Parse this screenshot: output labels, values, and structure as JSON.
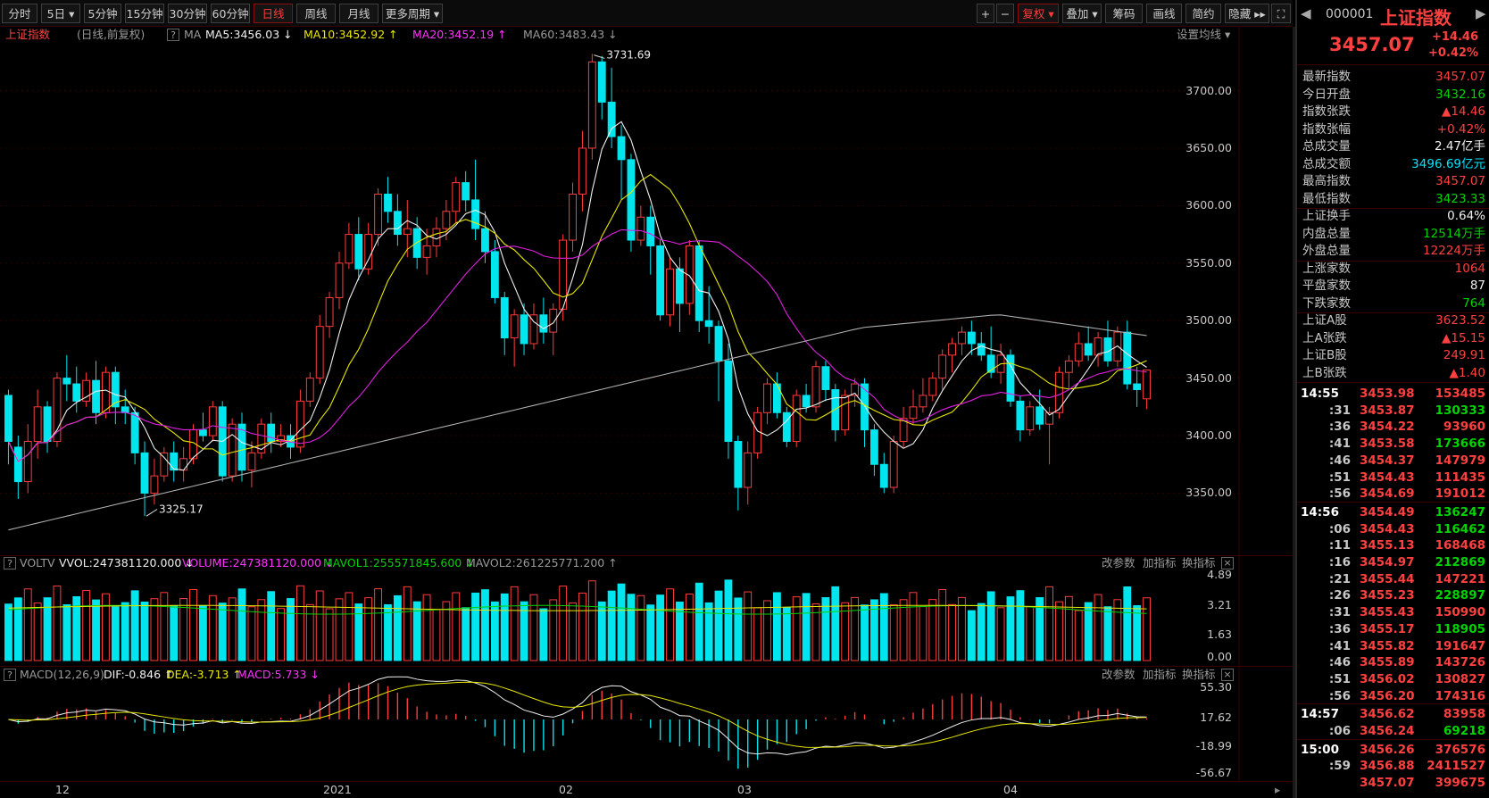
{
  "toolbar": {
    "periods": [
      "分时",
      "5日 ▾",
      "5分钟",
      "15分钟",
      "30分钟",
      "60分钟",
      "日线",
      "周线",
      "月线",
      "更多周期 ▾"
    ],
    "active": "日线",
    "right_tools": [
      "+",
      "−",
      "复权 ▾",
      "叠加 ▾",
      "筹码",
      "画线",
      "简约",
      "隐藏 ▸▸",
      "⛶"
    ]
  },
  "chart_info": {
    "name": "上证指数",
    "desc": "(日线,前复权)",
    "help": "?",
    "ma_label": "MA",
    "ma5": "MA5:3456.03 ↓",
    "ma10": "MA10:3452.92 ↑",
    "ma20": "MA20:3452.19 ↑",
    "ma60": "MA60:3483.43 ↓",
    "settings": "设置均线 ▾"
  },
  "price_axis": [
    "3700.00",
    "3650.00",
    "3600.00",
    "3550.00",
    "3500.00",
    "3450.00",
    "3400.00",
    "3350.00"
  ],
  "annotations": {
    "high": "3731.69",
    "low": "3325.17"
  },
  "volume_panel": {
    "help": "?",
    "name": "VOLTV",
    "vvol": "VVOL:247381120.000 ↓",
    "volume": "VOLUME:247381120.000 ↓",
    "mavol1": "MAVOL1:255571845.600 ↓",
    "mavol2": "MAVOL2:261225771.200 ↑",
    "buttons": [
      "改参数",
      "加指标",
      "换指标"
    ],
    "axis": [
      "4.89",
      "3.21",
      "1.63",
      "0.00"
    ]
  },
  "macd_panel": {
    "help": "?",
    "name": "MACD(12,26,9)",
    "dif": "DIF:-0.846 ↑",
    "dea": "DEA:-3.713 ↑",
    "macd": "MACD:5.733 ↓",
    "buttons": [
      "改参数",
      "加指标",
      "换指标"
    ],
    "axis": [
      "55.30",
      "17.62",
      "-18.99",
      "-56.67"
    ]
  },
  "date_axis": [
    "12",
    "2021",
    "02",
    "03",
    "04"
  ],
  "sidebar": {
    "code": "000001",
    "name": "上证指数",
    "price": "3457.07",
    "change": "+14.46",
    "change_pct": "+0.42%",
    "stats": [
      {
        "label": "最新指数",
        "value": "3457.07",
        "color": "red"
      },
      {
        "label": "今日开盘",
        "value": "3432.16",
        "color": "green"
      },
      {
        "label": "指数张跌",
        "value": "▲14.46",
        "color": "red"
      },
      {
        "label": "指数张幅",
        "value": "+0.42%",
        "color": "red"
      },
      {
        "label": "总成交量",
        "value": "2.47亿手",
        "color": "white"
      },
      {
        "label": "总成交额",
        "value": "3496.69亿元",
        "color": "cyan"
      },
      {
        "label": "最高指数",
        "value": "3457.07",
        "color": "red"
      },
      {
        "label": "最低指数",
        "value": "3423.33",
        "color": "green"
      }
    ],
    "stats2": [
      {
        "label": "上证换手",
        "value": "0.64%",
        "color": "white"
      },
      {
        "label": "内盘总量",
        "value": "12514万手",
        "color": "green"
      },
      {
        "label": "外盘总量",
        "value": "12224万手",
        "color": "red"
      }
    ],
    "stats3": [
      {
        "label": "上涨家数",
        "value": "1064",
        "color": "red"
      },
      {
        "label": "平盘家数",
        "value": "87",
        "color": "white"
      },
      {
        "label": "下跌家数",
        "value": "764",
        "color": "green"
      }
    ],
    "stats4": [
      {
        "label": "上证A股",
        "value": "3623.52",
        "color": "red"
      },
      {
        "label": "上A张跌",
        "value": "▲15.15",
        "color": "red"
      },
      {
        "label": "上证B股",
        "value": "249.91",
        "color": "red"
      },
      {
        "label": "上B张跌",
        "value": "▲1.40",
        "color": "red"
      }
    ],
    "ticks": [
      {
        "t": "14:55",
        "p": "3453.98",
        "q": "153485",
        "c": "red"
      },
      {
        "t": ":31",
        "p": "3453.87",
        "q": "130333",
        "c": "green"
      },
      {
        "t": ":36",
        "p": "3454.22",
        "q": "93960",
        "c": "red"
      },
      {
        "t": ":41",
        "p": "3453.58",
        "q": "173666",
        "c": "green"
      },
      {
        "t": ":46",
        "p": "3454.37",
        "q": "147979",
        "c": "red"
      },
      {
        "t": ":51",
        "p": "3454.43",
        "q": "111435",
        "c": "red"
      },
      {
        "t": ":56",
        "p": "3454.69",
        "q": "191012",
        "c": "red"
      },
      {
        "t": "14:56",
        "p": "3454.49",
        "q": "136247",
        "c": "green"
      },
      {
        "t": ":06",
        "p": "3454.43",
        "q": "116462",
        "c": "green"
      },
      {
        "t": ":11",
        "p": "3455.13",
        "q": "168468",
        "c": "red"
      },
      {
        "t": ":16",
        "p": "3454.97",
        "q": "212869",
        "c": "green"
      },
      {
        "t": ":21",
        "p": "3455.44",
        "q": "147221",
        "c": "red"
      },
      {
        "t": ":26",
        "p": "3455.23",
        "q": "228897",
        "c": "green"
      },
      {
        "t": ":31",
        "p": "3455.43",
        "q": "150990",
        "c": "red"
      },
      {
        "t": ":36",
        "p": "3455.17",
        "q": "118905",
        "c": "green"
      },
      {
        "t": ":41",
        "p": "3455.82",
        "q": "191647",
        "c": "red"
      },
      {
        "t": ":46",
        "p": "3455.89",
        "q": "143726",
        "c": "red"
      },
      {
        "t": ":51",
        "p": "3456.02",
        "q": "130827",
        "c": "red"
      },
      {
        "t": ":56",
        "p": "3456.20",
        "q": "174316",
        "c": "red"
      },
      {
        "t": "14:57",
        "p": "3456.62",
        "q": "83958",
        "c": "red"
      },
      {
        "t": ":06",
        "p": "3456.24",
        "q": "69218",
        "c": "green"
      },
      {
        "t": "15:00",
        "p": "3456.26",
        "q": "376576",
        "c": "red"
      },
      {
        "t": ":59",
        "p": "3456.88",
        "q": "2411527",
        "c": "red"
      },
      {
        "t": "",
        "p": "3457.07",
        "q": "399675",
        "c": "red"
      }
    ]
  },
  "colors": {
    "up": "#ff3c3c",
    "down": "#00e5ee",
    "ma5": "#f0f0f0",
    "ma10": "#e8e800",
    "ma20": "#e020e0",
    "ma60": "#b0b0b0",
    "border": "#3a0000"
  },
  "chart_data": {
    "type": "candlestick",
    "series_order": [
      "o",
      "c",
      "h",
      "l"
    ],
    "price_range": [
      3310,
      3740
    ],
    "candles": [
      [
        3435,
        3395,
        3440,
        3375
      ],
      [
        3390,
        3360,
        3400,
        3345
      ],
      [
        3360,
        3395,
        3410,
        3350
      ],
      [
        3395,
        3425,
        3440,
        3380
      ],
      [
        3425,
        3395,
        3430,
        3385
      ],
      [
        3395,
        3450,
        3455,
        3390
      ],
      [
        3450,
        3445,
        3470,
        3430
      ],
      [
        3445,
        3430,
        3460,
        3420
      ],
      [
        3430,
        3448,
        3455,
        3425
      ],
      [
        3448,
        3420,
        3465,
        3410
      ],
      [
        3420,
        3455,
        3460,
        3415
      ],
      [
        3455,
        3425,
        3460,
        3410
      ],
      [
        3425,
        3420,
        3440,
        3410
      ],
      [
        3420,
        3385,
        3425,
        3375
      ],
      [
        3385,
        3350,
        3395,
        3330
      ],
      [
        3350,
        3365,
        3380,
        3340
      ],
      [
        3365,
        3385,
        3390,
        3360
      ],
      [
        3385,
        3370,
        3395,
        3360
      ],
      [
        3370,
        3380,
        3390,
        3360
      ],
      [
        3380,
        3405,
        3410,
        3375
      ],
      [
        3405,
        3400,
        3420,
        3395
      ],
      [
        3400,
        3425,
        3430,
        3395
      ],
      [
        3425,
        3365,
        3430,
        3360
      ],
      [
        3365,
        3410,
        3415,
        3360
      ],
      [
        3410,
        3370,
        3420,
        3360
      ],
      [
        3370,
        3385,
        3395,
        3355
      ],
      [
        3385,
        3410,
        3415,
        3380
      ],
      [
        3410,
        3395,
        3420,
        3385
      ],
      [
        3395,
        3400,
        3410,
        3390
      ],
      [
        3400,
        3390,
        3410,
        3380
      ],
      [
        3390,
        3430,
        3440,
        3385
      ],
      [
        3430,
        3450,
        3455,
        3425
      ],
      [
        3450,
        3495,
        3505,
        3445
      ],
      [
        3495,
        3520,
        3525,
        3485
      ],
      [
        3520,
        3550,
        3560,
        3510
      ],
      [
        3550,
        3575,
        3585,
        3545
      ],
      [
        3575,
        3545,
        3590,
        3535
      ],
      [
        3545,
        3575,
        3585,
        3540
      ],
      [
        3575,
        3610,
        3615,
        3565
      ],
      [
        3610,
        3595,
        3625,
        3585
      ],
      [
        3595,
        3575,
        3610,
        3565
      ],
      [
        3575,
        3580,
        3605,
        3555
      ],
      [
        3580,
        3555,
        3590,
        3545
      ],
      [
        3555,
        3565,
        3580,
        3540
      ],
      [
        3565,
        3580,
        3590,
        3555
      ],
      [
        3580,
        3595,
        3605,
        3570
      ],
      [
        3595,
        3620,
        3625,
        3585
      ],
      [
        3620,
        3605,
        3630,
        3595
      ],
      [
        3605,
        3580,
        3640,
        3570
      ],
      [
        3580,
        3560,
        3595,
        3550
      ],
      [
        3560,
        3520,
        3570,
        3515
      ],
      [
        3520,
        3485,
        3525,
        3470
      ],
      [
        3485,
        3505,
        3510,
        3460
      ],
      [
        3505,
        3480,
        3515,
        3470
      ],
      [
        3480,
        3505,
        3515,
        3475
      ],
      [
        3505,
        3490,
        3520,
        3480
      ],
      [
        3490,
        3510,
        3515,
        3470
      ],
      [
        3510,
        3570,
        3575,
        3500
      ],
      [
        3570,
        3610,
        3620,
        3560
      ],
      [
        3610,
        3650,
        3665,
        3595
      ],
      [
        3650,
        3725,
        3732,
        3640
      ],
      [
        3725,
        3690,
        3730,
        3675
      ],
      [
        3690,
        3660,
        3720,
        3650
      ],
      [
        3660,
        3640,
        3670,
        3605
      ],
      [
        3640,
        3570,
        3645,
        3560
      ],
      [
        3570,
        3590,
        3600,
        3565
      ],
      [
        3590,
        3565,
        3600,
        3540
      ],
      [
        3565,
        3505,
        3570,
        3500
      ],
      [
        3505,
        3545,
        3555,
        3495
      ],
      [
        3545,
        3515,
        3555,
        3490
      ],
      [
        3515,
        3565,
        3570,
        3505
      ],
      [
        3565,
        3500,
        3570,
        3490
      ],
      [
        3500,
        3495,
        3530,
        3480
      ],
      [
        3495,
        3465,
        3500,
        3430
      ],
      [
        3465,
        3395,
        3480,
        3380
      ],
      [
        3395,
        3355,
        3400,
        3335
      ],
      [
        3355,
        3385,
        3395,
        3340
      ],
      [
        3385,
        3420,
        3425,
        3380
      ],
      [
        3420,
        3445,
        3450,
        3410
      ],
      [
        3445,
        3420,
        3455,
        3415
      ],
      [
        3420,
        3395,
        3425,
        3390
      ],
      [
        3395,
        3435,
        3440,
        3390
      ],
      [
        3435,
        3425,
        3445,
        3420
      ],
      [
        3425,
        3460,
        3465,
        3420
      ],
      [
        3460,
        3440,
        3465,
        3430
      ],
      [
        3440,
        3405,
        3445,
        3395
      ],
      [
        3405,
        3435,
        3440,
        3400
      ],
      [
        3435,
        3445,
        3450,
        3425
      ],
      [
        3445,
        3405,
        3450,
        3390
      ],
      [
        3405,
        3375,
        3410,
        3365
      ],
      [
        3375,
        3355,
        3385,
        3350
      ],
      [
        3355,
        3395,
        3400,
        3350
      ],
      [
        3395,
        3415,
        3425,
        3390
      ],
      [
        3415,
        3425,
        3440,
        3410
      ],
      [
        3425,
        3435,
        3450,
        3420
      ],
      [
        3435,
        3450,
        3455,
        3430
      ],
      [
        3450,
        3470,
        3475,
        3440
      ],
      [
        3470,
        3480,
        3485,
        3455
      ],
      [
        3480,
        3490,
        3495,
        3470
      ],
      [
        3490,
        3480,
        3500,
        3470
      ],
      [
        3480,
        3470,
        3490,
        3465
      ],
      [
        3470,
        3455,
        3495,
        3450
      ],
      [
        3455,
        3470,
        3480,
        3445
      ],
      [
        3470,
        3430,
        3475,
        3425
      ],
      [
        3430,
        3405,
        3435,
        3395
      ],
      [
        3405,
        3425,
        3430,
        3400
      ],
      [
        3425,
        3410,
        3440,
        3405
      ],
      [
        3410,
        3420,
        3425,
        3375
      ],
      [
        3420,
        3455,
        3460,
        3415
      ],
      [
        3455,
        3465,
        3470,
        3440
      ],
      [
        3465,
        3480,
        3490,
        3460
      ],
      [
        3480,
        3470,
        3495,
        3465
      ],
      [
        3470,
        3485,
        3490,
        3460
      ],
      [
        3485,
        3465,
        3500,
        3460
      ],
      [
        3465,
        3490,
        3495,
        3460
      ],
      [
        3490,
        3445,
        3500,
        3440
      ],
      [
        3445,
        3440,
        3460,
        3425
      ],
      [
        3432,
        3457,
        3457,
        3423
      ]
    ]
  }
}
